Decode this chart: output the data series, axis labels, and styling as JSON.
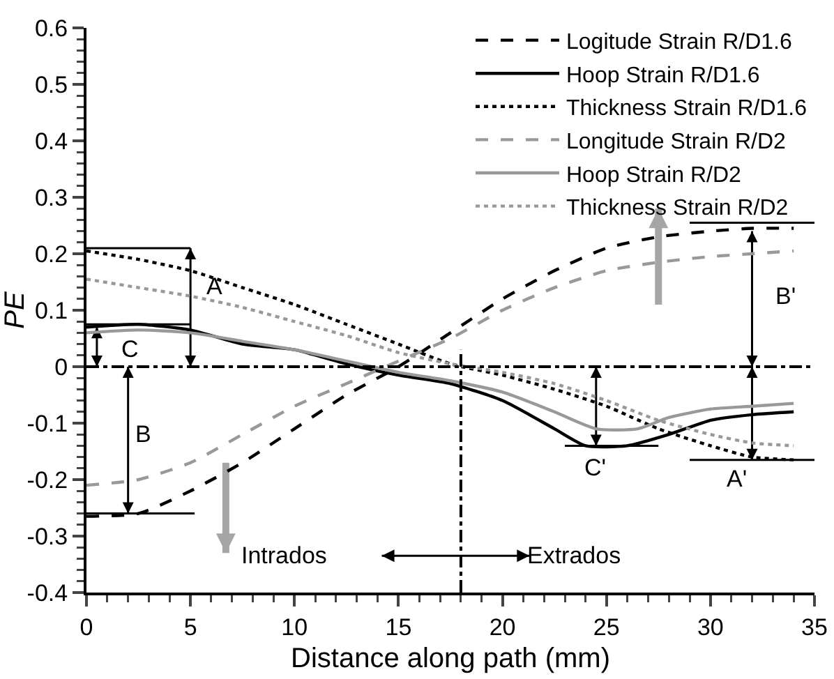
{
  "chart_data": {
    "type": "line",
    "xlabel": "Distance along path (mm)",
    "ylabel": "PE",
    "x": [
      0,
      2.5,
      5,
      7.5,
      10,
      12.5,
      15,
      17.5,
      20,
      22.5,
      25,
      27.5,
      30,
      32,
      34
    ],
    "series": [
      {
        "name": "Logitude Strain R/D1.6",
        "color": "#000000",
        "line_style": "dashed",
        "values": [
          -0.265,
          -0.26,
          -0.22,
          -0.17,
          -0.11,
          -0.05,
          0.0,
          0.06,
          0.12,
          0.17,
          0.21,
          0.23,
          0.24,
          0.245,
          0.245
        ]
      },
      {
        "name": "Hoop Strain R/D1.6",
        "color": "#000000",
        "line_style": "solid",
        "x": [
          0,
          2.5,
          5,
          7.5,
          10,
          12.5,
          15,
          17.5,
          20,
          22.5,
          24,
          26,
          28,
          30,
          32,
          34
        ],
        "values": [
          0.07,
          0.075,
          0.065,
          0.04,
          0.03,
          0.005,
          -0.015,
          -0.03,
          -0.06,
          -0.11,
          -0.14,
          -0.14,
          -0.12,
          -0.095,
          -0.085,
          -0.08
        ]
      },
      {
        "name": "Thickness Strain R/D1.6",
        "color": "#000000",
        "line_style": "dotted",
        "values": [
          0.205,
          0.19,
          0.17,
          0.14,
          0.11,
          0.075,
          0.04,
          0.005,
          -0.015,
          -0.04,
          -0.07,
          -0.11,
          -0.14,
          -0.16,
          -0.165
        ]
      },
      {
        "name": "Longitude Strain R/D2",
        "color": "#999999",
        "line_style": "dashed",
        "values": [
          -0.21,
          -0.2,
          -0.17,
          -0.12,
          -0.07,
          -0.03,
          0.01,
          0.05,
          0.1,
          0.14,
          0.17,
          0.185,
          0.195,
          0.2,
          0.205
        ]
      },
      {
        "name": "Hoop Strain R/D2",
        "color": "#999999",
        "line_style": "solid",
        "x": [
          0,
          2.5,
          5,
          7.5,
          10,
          12.5,
          15,
          17.5,
          20,
          22.5,
          24.5,
          26.5,
          28,
          30,
          32,
          34
        ],
        "values": [
          0.06,
          0.065,
          0.06,
          0.045,
          0.03,
          0.01,
          -0.01,
          -0.025,
          -0.045,
          -0.08,
          -0.11,
          -0.11,
          -0.09,
          -0.075,
          -0.07,
          -0.065
        ]
      },
      {
        "name": "Thickness Strain R/D2",
        "color": "#999999",
        "line_style": "dotted",
        "values": [
          0.155,
          0.14,
          0.125,
          0.105,
          0.08,
          0.055,
          0.025,
          0.005,
          -0.01,
          -0.03,
          -0.06,
          -0.095,
          -0.12,
          -0.135,
          -0.14
        ]
      }
    ],
    "xlim": [
      0,
      35
    ],
    "xticks": [
      0,
      5,
      10,
      15,
      20,
      25,
      30,
      35
    ],
    "ylim": [
      -0.4,
      0.6
    ],
    "yticks": [
      {
        "value": -0.4,
        "label": "-0.4"
      },
      {
        "value": -0.3,
        "label": "-0.3"
      },
      {
        "value": -0.2,
        "label": "-0.2"
      },
      {
        "value": -0.1,
        "label": "-0.1"
      },
      0,
      {
        "value": 0.1,
        "label": "0.1"
      },
      {
        "value": 0.2,
        "label": "0.2"
      },
      {
        "value": 0.3,
        "label": "0.3"
      },
      {
        "value": 0.4,
        "label": "0.4"
      },
      {
        "value": 0.5,
        "label": "0.5"
      },
      {
        "value": 0.6,
        "label": "0.6"
      }
    ],
    "ref_lines": [
      {
        "axis": "y",
        "value": 0,
        "line_style": "dashdot",
        "color": "#000000"
      },
      {
        "axis": "x",
        "value": 18,
        "line_style": "dashdot",
        "color": "#000000"
      }
    ],
    "annotations": [
      {
        "text": "A",
        "x": 0,
        "y": 0.205
      },
      "B",
      {
        "text": "C",
        "x": 2.5,
        "y": 0.075
      },
      {
        "text": "A'",
        "x": 34,
        "y": -0.165
      },
      {
        "text": "B'",
        "x": 34,
        "y": 0.245
      },
      {
        "text": "C'",
        "x": 24,
        "y": -0.14
      },
      "Intrados",
      {
        "text": "Extrados",
        "x": 18,
        "y": -0.335
      }
    ],
    "grid": false,
    "legend": "top right",
    "marker": "none"
  }
}
